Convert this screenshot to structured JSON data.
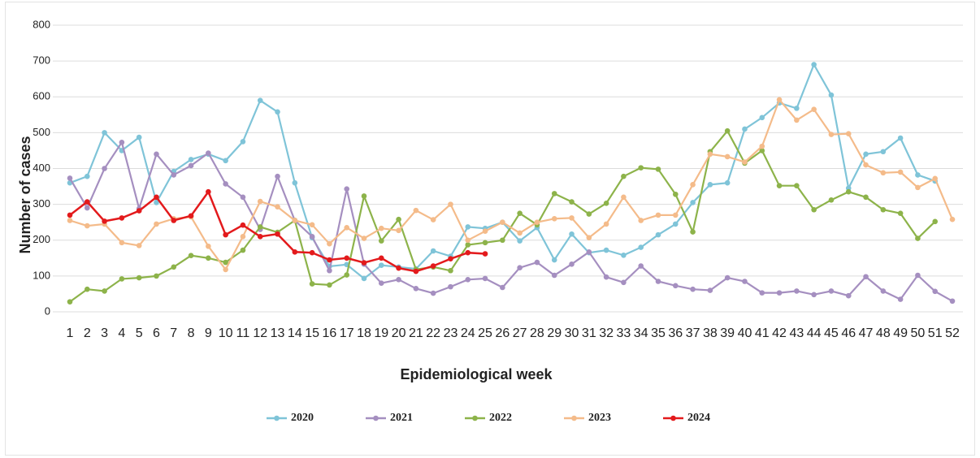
{
  "chart_data": {
    "type": "line",
    "y_label": "Number of cases",
    "x_label": "Epidemiological week",
    "categories": [
      "1",
      "2",
      "3",
      "4",
      "5",
      "6",
      "7",
      "8",
      "9",
      "10",
      "11",
      "12",
      "13",
      "14",
      "15",
      "16",
      "17",
      "18",
      "19",
      "20",
      "21",
      "22",
      "23",
      "24",
      "25",
      "26",
      "27",
      "28",
      "29",
      "30",
      "31",
      "32",
      "33",
      "34",
      "35",
      "36",
      "37",
      "38",
      "39",
      "40",
      "41",
      "42",
      "43",
      "44",
      "45",
      "46",
      "47",
      "48",
      "49",
      "50",
      "51",
      "52"
    ],
    "ylim": [
      0,
      800
    ],
    "yticks": [
      0,
      100,
      200,
      300,
      400,
      500,
      600,
      700,
      800
    ],
    "grid": true,
    "legend": "bottom",
    "series": [
      {
        "name": "2020",
        "color": "#7fc4d8",
        "values": [
          360,
          378,
          500,
          450,
          487,
          305,
          392,
          425,
          440,
          422,
          475,
          590,
          558,
          360,
          207,
          127,
          132,
          93,
          130,
          125,
          120,
          170,
          155,
          237,
          233,
          250,
          198,
          235,
          145,
          217,
          165,
          172,
          158,
          180,
          215,
          245,
          305,
          355,
          360,
          510,
          542,
          583,
          568,
          690,
          605,
          345,
          440,
          447,
          485,
          382,
          365,
          null
        ]
      },
      {
        "name": "2021",
        "color": "#a58fc0",
        "values": [
          373,
          290,
          400,
          473,
          288,
          440,
          382,
          408,
          443,
          357,
          320,
          230,
          378,
          255,
          210,
          115,
          343,
          133,
          80,
          90,
          65,
          52,
          70,
          90,
          93,
          68,
          123,
          138,
          102,
          133,
          167,
          97,
          82,
          128,
          85,
          73,
          63,
          60,
          95,
          85,
          53,
          53,
          58,
          48,
          58,
          45,
          98,
          58,
          35,
          102,
          57,
          30
        ]
      },
      {
        "name": "2022",
        "color": "#8db34a",
        "values": [
          28,
          63,
          58,
          92,
          95,
          100,
          125,
          157,
          150,
          138,
          172,
          237,
          222,
          255,
          78,
          75,
          103,
          323,
          198,
          258,
          118,
          125,
          115,
          187,
          193,
          200,
          275,
          243,
          330,
          307,
          273,
          303,
          378,
          402,
          398,
          328,
          223,
          447,
          505,
          415,
          450,
          352,
          352,
          285,
          312,
          335,
          320,
          285,
          275,
          205,
          252,
          null
        ]
      },
      {
        "name": "2023",
        "color": "#f4bb8a",
        "values": [
          255,
          240,
          245,
          193,
          185,
          245,
          260,
          265,
          183,
          118,
          210,
          308,
          293,
          255,
          243,
          190,
          235,
          205,
          233,
          227,
          283,
          257,
          300,
          200,
          225,
          250,
          220,
          250,
          260,
          262,
          207,
          245,
          320,
          255,
          270,
          270,
          355,
          440,
          433,
          418,
          462,
          592,
          535,
          565,
          495,
          497,
          410,
          388,
          390,
          347,
          372,
          258
        ]
      },
      {
        "name": "2024",
        "color": "#e31a1c",
        "values": [
          270,
          307,
          253,
          262,
          282,
          320,
          255,
          268,
          335,
          215,
          242,
          210,
          217,
          167,
          165,
          145,
          150,
          137,
          150,
          122,
          113,
          128,
          148,
          165,
          162,
          null,
          null,
          null,
          null,
          null,
          null,
          null,
          null,
          null,
          null,
          null,
          null,
          null,
          null,
          null,
          null,
          null,
          null,
          null,
          null,
          null,
          null,
          null,
          null,
          null,
          null,
          null
        ]
      }
    ]
  }
}
